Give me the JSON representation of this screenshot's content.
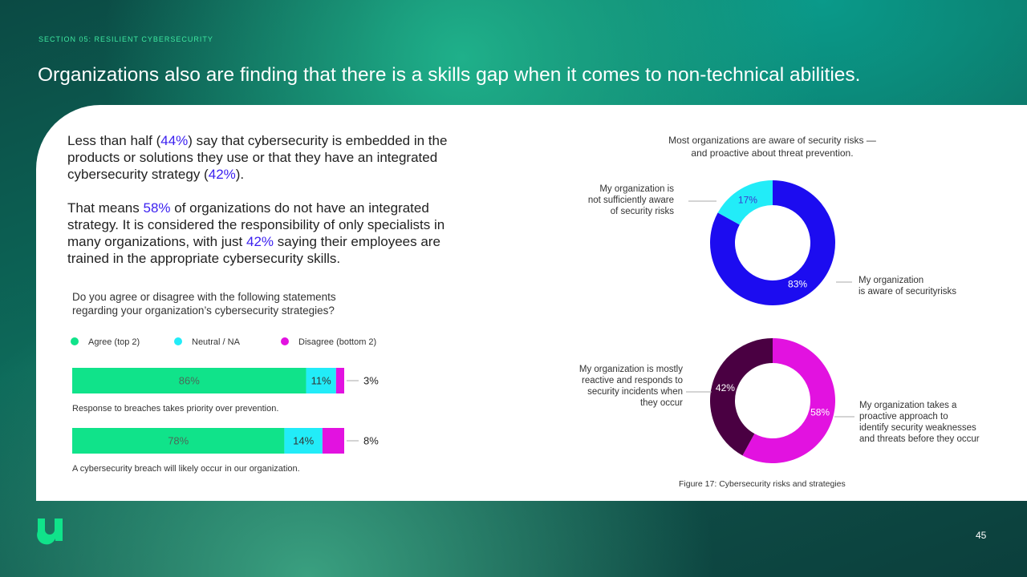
{
  "header": {
    "section": "SECTION 05: RESILIENT CYBERSECURITY",
    "title": "Organizations also are finding that there is a skills gap when it comes to non-technical abilities."
  },
  "body": {
    "paragraphs": [
      [
        {
          "text": "Less than half ("
        },
        {
          "text": "44%",
          "emphasis": true
        },
        {
          "text": ") say that cybersecurity is embedded in the products or solutions they use or that they have an integrated cybersecurity strategy ("
        },
        {
          "text": "42%",
          "emphasis": true
        },
        {
          "text": ")."
        }
      ],
      [
        {
          "text": "That means "
        },
        {
          "text": "58%",
          "emphasis": true
        },
        {
          "text": " of organizations do not have an integrated strategy. It is considered the responsibility of only specialists in many organizations, with just "
        },
        {
          "text": "42%",
          "emphasis": true
        },
        {
          "text": " saying their employees are trained in the appropriate cybersecurity skills."
        }
      ]
    ],
    "emphasis_color": "#3a1ff0"
  },
  "chart_data": [
    {
      "type": "bar",
      "orientation": "horizontal",
      "stacked": true,
      "title": "Do you agree or disagree with the following statements\nregarding your organization’s cybersecurity strategies?",
      "categories": [
        "Response to breaches takes priority over prevention.",
        "A cybersecurity breach will likely occur in our organization."
      ],
      "series": [
        {
          "name": "Agree (top 2)",
          "color": "#10e38a",
          "label_color": "#4a6a5a",
          "values": [
            86,
            78
          ],
          "value_labels": [
            "86%",
            "78%"
          ]
        },
        {
          "name": "Neutral / NA",
          "color": "#22ecf8",
          "label_color": "#333333",
          "values": [
            11,
            14
          ],
          "value_labels": [
            "11%",
            "14%"
          ]
        },
        {
          "name": "Disagree (bottom 2)",
          "color": "#e212e0",
          "label_color": "#222222",
          "label_position": "outside",
          "values": [
            3,
            8
          ],
          "value_labels": [
            "3%",
            "8%"
          ]
        }
      ]
    },
    {
      "type": "donut",
      "title": "Most organizations are aware of security risks —\nand proactive about threat prevention.",
      "categories": [
        "My organization\nis aware  of securityrisks",
        "My organization is\nnot sufficiently aware\nof security risks"
      ],
      "values": [
        83,
        17
      ],
      "value_labels": [
        "83%",
        "17%"
      ],
      "colors": [
        "#1c0cf0",
        "#22ecf8"
      ],
      "label_colors": [
        "#ffffff",
        "#3a3ad0"
      ]
    },
    {
      "type": "donut",
      "categories": [
        "My organization takes a\nproactive approach to\nidentify security weaknesses\nand threats before they occur",
        "My organization is mostly\nreactive  and responds to\nsecurity incidents when\nthey occur"
      ],
      "values": [
        58,
        42
      ],
      "value_labels": [
        "58%",
        "42%"
      ],
      "colors": [
        "#e212e0",
        "#4a0042"
      ],
      "label_colors": [
        "#ffffff",
        "#ffffff"
      ]
    }
  ],
  "figure_caption": "Figure  17: Cybersecurity risks and strategies",
  "page_number": 45
}
